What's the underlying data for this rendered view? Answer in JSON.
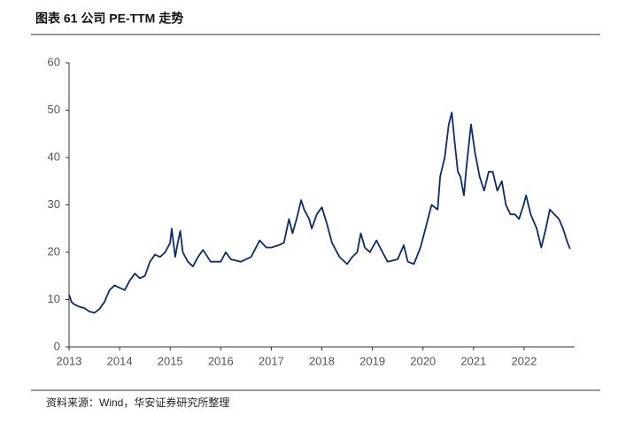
{
  "chart_data": {
    "type": "line",
    "title": "图表 61 公司 PE-TTM 走势",
    "source": "资料来源：Wind，华安证券研究所整理",
    "x": [
      2013.0,
      2013.05,
      2013.1,
      2013.2,
      2013.3,
      2013.4,
      2013.5,
      2013.6,
      2013.7,
      2013.8,
      2013.9,
      2014.0,
      2014.1,
      2014.2,
      2014.3,
      2014.4,
      2014.5,
      2014.6,
      2014.7,
      2014.8,
      2014.9,
      2015.0,
      2015.03,
      2015.1,
      2015.15,
      2015.2,
      2015.25,
      2015.35,
      2015.45,
      2015.55,
      2015.65,
      2015.8,
      2016.0,
      2016.1,
      2016.2,
      2016.4,
      2016.6,
      2016.77,
      2016.9,
      2017.0,
      2017.15,
      2017.25,
      2017.35,
      2017.42,
      2017.5,
      2017.59,
      2017.65,
      2017.75,
      2017.8,
      2017.9,
      2018.0,
      2018.1,
      2018.2,
      2018.35,
      2018.5,
      2018.6,
      2018.7,
      2018.77,
      2018.85,
      2018.95,
      2019.08,
      2019.2,
      2019.3,
      2019.5,
      2019.62,
      2019.7,
      2019.82,
      2019.95,
      2020.05,
      2020.17,
      2020.29,
      2020.34,
      2020.43,
      2020.51,
      2020.57,
      2020.63,
      2020.69,
      2020.74,
      2020.81,
      2020.86,
      2020.95,
      2021.03,
      2021.12,
      2021.21,
      2021.3,
      2021.38,
      2021.47,
      2021.56,
      2021.64,
      2021.73,
      2021.82,
      2021.9,
      2021.99,
      2022.04,
      2022.13,
      2022.25,
      2022.34,
      2022.43,
      2022.51,
      2022.6,
      2022.69,
      2022.77,
      2022.86,
      2022.91
    ],
    "series": [
      {
        "name": "PE-TTM",
        "color": "#0d2a6b",
        "values": [
          11,
          9.5,
          9,
          8.5,
          8.2,
          7.5,
          7.2,
          8,
          9.5,
          12,
          13,
          12.5,
          12,
          14,
          15.5,
          14.5,
          15,
          18,
          19.5,
          19,
          20,
          22,
          25,
          19,
          22,
          24.5,
          20,
          18,
          17,
          19,
          20.5,
          18,
          18,
          20,
          18.5,
          18,
          19,
          22.5,
          21,
          21,
          21.5,
          22,
          27,
          24,
          27,
          31,
          29,
          27,
          25,
          28,
          29.5,
          26,
          22,
          19,
          17.5,
          19,
          20,
          24,
          21,
          20,
          22.5,
          20,
          18,
          18.5,
          21.5,
          18,
          17.5,
          21,
          25,
          30,
          29,
          36,
          40,
          47,
          49.5,
          43,
          37,
          36,
          32,
          38,
          47,
          41,
          36,
          33,
          37,
          37,
          33,
          35,
          30,
          28,
          28,
          27,
          30,
          32,
          28,
          25,
          21,
          25,
          29,
          28,
          27,
          25,
          22,
          20.7
        ]
      }
    ],
    "xlim": [
      2013,
      2023
    ],
    "xticks": [
      2013,
      2014,
      2015,
      2016,
      2017,
      2018,
      2019,
      2020,
      2021,
      2022
    ],
    "ylim": [
      0,
      60
    ],
    "yticks": [
      0,
      10,
      20,
      30,
      40,
      50,
      60
    ],
    "grid": false
  }
}
